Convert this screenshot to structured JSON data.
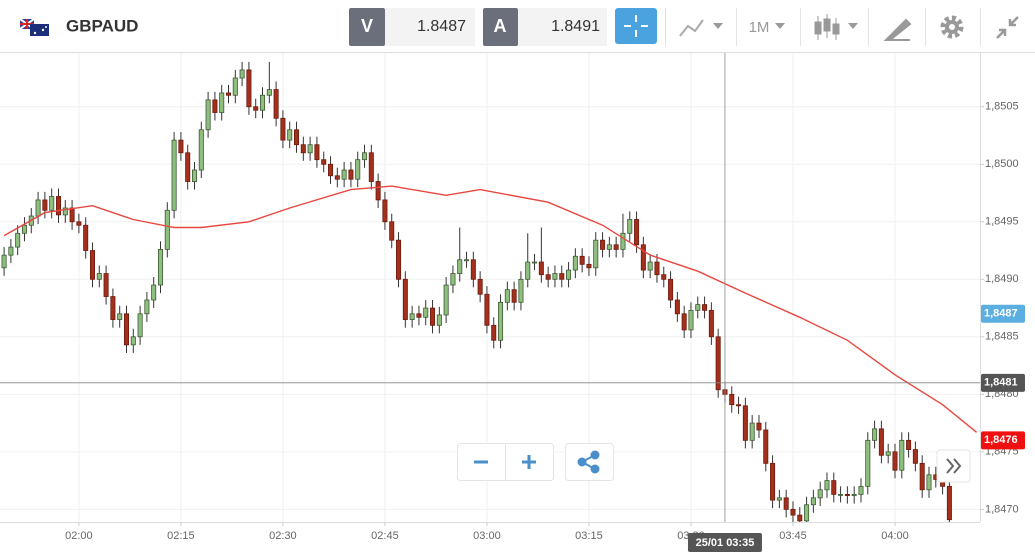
{
  "toolbar": {
    "symbol": "GBPAUD",
    "bid_label": "V",
    "bid": 1.8487,
    "ask_label": "A",
    "ask": 1.8491,
    "timeframe": "1M"
  },
  "chart_data": {
    "type": "candlestick",
    "up_color": "#8fbf7f",
    "down_color": "#a3301d",
    "wick_color": "#333333",
    "grid": true,
    "xlim": [
      -0.6,
      143.5
    ],
    "ylim": [
      1.84689,
      1.85095
    ],
    "xticks": [
      {
        "value": 11,
        "label": "02:00"
      },
      {
        "value": 26,
        "label": "02:15"
      },
      {
        "value": 41,
        "label": "02:30"
      },
      {
        "value": 56,
        "label": "02:45"
      },
      {
        "value": 71,
        "label": "03:00"
      },
      {
        "value": 86,
        "label": "03:15"
      },
      {
        "value": 101,
        "label": "03:30"
      },
      {
        "value": 116,
        "label": "03:45"
      },
      {
        "value": 131,
        "label": "04:00"
      }
    ],
    "yticks": [
      {
        "value": 1.847,
        "label": "1,8470"
      },
      {
        "value": 1.8475,
        "label": "1,8475"
      },
      {
        "value": 1.848,
        "label": "1,8480"
      },
      {
        "value": 1.8485,
        "label": "1,8485"
      },
      {
        "value": 1.849,
        "label": "1,8490"
      },
      {
        "value": 1.8495,
        "label": "1,8495"
      },
      {
        "value": 1.85,
        "label": "1,8500"
      },
      {
        "value": 1.8505,
        "label": "1,8505"
      }
    ],
    "ohlc": [
      [
        1.8491,
        1.84928,
        1.84903,
        1.84921
      ],
      [
        1.84921,
        1.84935,
        1.84914,
        1.84928
      ],
      [
        1.84928,
        1.84947,
        1.84921,
        1.8494
      ],
      [
        1.8494,
        1.84954,
        1.84933,
        1.84947
      ],
      [
        1.84947,
        1.84962,
        1.8494,
        1.84955
      ],
      [
        1.84955,
        1.84976,
        1.84948,
        1.84969
      ],
      [
        1.84969,
        1.84976,
        1.84953,
        1.8496
      ],
      [
        1.8496,
        1.84979,
        1.84953,
        1.84972
      ],
      [
        1.84972,
        1.84979,
        1.84949,
        1.84956
      ],
      [
        1.84956,
        1.84969,
        1.84949,
        1.84962
      ],
      [
        1.84962,
        1.84969,
        1.84943,
        1.8495
      ],
      [
        1.8495,
        1.84957,
        1.8494,
        1.84947
      ],
      [
        1.84947,
        1.84954,
        1.84918,
        1.84925
      ],
      [
        1.84925,
        1.84932,
        1.84893,
        1.849
      ],
      [
        1.849,
        1.84912,
        1.84893,
        1.84905
      ],
      [
        1.84905,
        1.84912,
        1.84878,
        1.84885
      ],
      [
        1.84885,
        1.84892,
        1.84858,
        1.84865
      ],
      [
        1.84865,
        1.84877,
        1.84858,
        1.8487
      ],
      [
        1.8487,
        1.84877,
        1.84836,
        1.84843
      ],
      [
        1.84843,
        1.84857,
        1.84836,
        1.8485
      ],
      [
        1.8485,
        1.84877,
        1.84843,
        1.8487
      ],
      [
        1.8487,
        1.84889,
        1.84863,
        1.84882
      ],
      [
        1.84882,
        1.84902,
        1.84875,
        1.84895
      ],
      [
        1.84895,
        1.84933,
        1.84888,
        1.84926
      ],
      [
        1.84926,
        1.84967,
        1.84919,
        1.8496
      ],
      [
        1.8496,
        1.85028,
        1.84953,
        1.85021
      ],
      [
        1.85021,
        1.85028,
        1.85003,
        1.8501
      ],
      [
        1.8501,
        1.85017,
        1.84978,
        1.84985
      ],
      [
        1.84985,
        1.85002,
        1.84978,
        1.84995
      ],
      [
        1.84995,
        1.85037,
        1.84988,
        1.8503
      ],
      [
        1.8503,
        1.85063,
        1.85023,
        1.85056
      ],
      [
        1.85056,
        1.85063,
        1.85038,
        1.85045
      ],
      [
        1.85045,
        1.85069,
        1.85038,
        1.85062
      ],
      [
        1.85062,
        1.85069,
        1.85053,
        1.8506
      ],
      [
        1.8506,
        1.85082,
        1.85053,
        1.85075
      ],
      [
        1.85075,
        1.85089,
        1.85068,
        1.85082
      ],
      [
        1.85082,
        1.85089,
        1.85043,
        1.8505
      ],
      [
        1.8505,
        1.85057,
        1.8504,
        1.85047
      ],
      [
        1.85047,
        1.85067,
        1.8504,
        1.8506
      ],
      [
        1.8506,
        1.85089,
        1.85053,
        1.85065
      ],
      [
        1.85065,
        1.85072,
        1.85033,
        1.8504
      ],
      [
        1.8504,
        1.85047,
        1.85014,
        1.85021
      ],
      [
        1.85021,
        1.85037,
        1.85014,
        1.8503
      ],
      [
        1.8503,
        1.85037,
        1.8501,
        1.85017
      ],
      [
        1.85017,
        1.85024,
        1.85003,
        1.8501
      ],
      [
        1.8501,
        1.85024,
        1.85003,
        1.85017
      ],
      [
        1.85017,
        1.85024,
        1.84997,
        1.85004
      ],
      [
        1.85004,
        1.85011,
        1.84993,
        1.85
      ],
      [
        1.85,
        1.85007,
        1.84983,
        1.8499
      ],
      [
        1.8499,
        1.84997,
        1.8498,
        1.84987
      ],
      [
        1.84987,
        1.85002,
        1.8498,
        1.84995
      ],
      [
        1.84995,
        1.85002,
        1.8498,
        1.84987
      ],
      [
        1.84987,
        1.85011,
        1.8498,
        1.85004
      ],
      [
        1.85004,
        1.85017,
        1.84997,
        1.8501
      ],
      [
        1.8501,
        1.85017,
        1.84978,
        1.84985
      ],
      [
        1.84985,
        1.84992,
        1.84962,
        1.84969
      ],
      [
        1.84969,
        1.84976,
        1.84943,
        1.8495
      ],
      [
        1.8495,
        1.84957,
        1.84927,
        1.84934
      ],
      [
        1.84934,
        1.84941,
        1.84893,
        1.849
      ],
      [
        1.849,
        1.84907,
        1.84858,
        1.84865
      ],
      [
        1.84865,
        1.84877,
        1.84858,
        1.8487
      ],
      [
        1.8487,
        1.84877,
        1.8486,
        1.84867
      ],
      [
        1.84867,
        1.84882,
        1.8486,
        1.84875
      ],
      [
        1.84875,
        1.84882,
        1.84853,
        1.8486
      ],
      [
        1.8486,
        1.84876,
        1.84853,
        1.84869
      ],
      [
        1.84869,
        1.84902,
        1.84862,
        1.84895
      ],
      [
        1.84895,
        1.84912,
        1.84888,
        1.84905
      ],
      [
        1.84905,
        1.84945,
        1.84898,
        1.84917
      ],
      [
        1.84917,
        1.84924,
        1.8491,
        1.84917
      ],
      [
        1.84917,
        1.84924,
        1.84893,
        1.849
      ],
      [
        1.849,
        1.84907,
        1.8488,
        1.84887
      ],
      [
        1.84887,
        1.84894,
        1.84853,
        1.8486
      ],
      [
        1.8486,
        1.84867,
        1.8484,
        1.84847
      ],
      [
        1.84847,
        1.84887,
        1.8484,
        1.8488
      ],
      [
        1.8488,
        1.84898,
        1.84873,
        1.84891
      ],
      [
        1.84891,
        1.84898,
        1.84873,
        1.8488
      ],
      [
        1.8488,
        1.84907,
        1.84873,
        1.849
      ],
      [
        1.849,
        1.8494,
        1.84893,
        1.84915
      ],
      [
        1.84915,
        1.84922,
        1.84908,
        1.84915
      ],
      [
        1.84915,
        1.84945,
        1.84897,
        1.84904
      ],
      [
        1.84904,
        1.84911,
        1.84893,
        1.849
      ],
      [
        1.849,
        1.84912,
        1.84893,
        1.84905
      ],
      [
        1.84905,
        1.84912,
        1.84893,
        1.849
      ],
      [
        1.849,
        1.84915,
        1.84893,
        1.84908
      ],
      [
        1.84908,
        1.84927,
        1.84901,
        1.8492
      ],
      [
        1.8492,
        1.84927,
        1.84906,
        1.84913
      ],
      [
        1.84913,
        1.8492,
        1.84903,
        1.8491
      ],
      [
        1.8491,
        1.84941,
        1.84903,
        1.84934
      ],
      [
        1.84934,
        1.84941,
        1.84919,
        1.84926
      ],
      [
        1.84926,
        1.84937,
        1.84919,
        1.8493
      ],
      [
        1.8493,
        1.84937,
        1.84919,
        1.84926
      ],
      [
        1.84926,
        1.84957,
        1.84919,
        1.8494
      ],
      [
        1.8494,
        1.84959,
        1.84933,
        1.84952
      ],
      [
        1.84952,
        1.84959,
        1.84923,
        1.8493
      ],
      [
        1.8493,
        1.84937,
        1.84901,
        1.84908
      ],
      [
        1.84908,
        1.84922,
        1.84901,
        1.84915
      ],
      [
        1.84915,
        1.84922,
        1.84897,
        1.84904
      ],
      [
        1.84904,
        1.84911,
        1.84893,
        1.849
      ],
      [
        1.849,
        1.84907,
        1.84875,
        1.84882
      ],
      [
        1.84882,
        1.84889,
        1.84863,
        1.8487
      ],
      [
        1.8487,
        1.84877,
        1.84849,
        1.84856
      ],
      [
        1.84856,
        1.8488,
        1.84849,
        1.84873
      ],
      [
        1.84873,
        1.84885,
        1.84866,
        1.84878
      ],
      [
        1.84878,
        1.84885,
        1.84866,
        1.84873
      ],
      [
        1.84873,
        1.8488,
        1.84843,
        1.8485
      ],
      [
        1.8485,
        1.84857,
        1.84797,
        1.84804
      ],
      [
        1.84804,
        1.84811,
        1.84793,
        1.848
      ],
      [
        1.848,
        1.84807,
        1.84784,
        1.84791
      ],
      [
        1.84791,
        1.84798,
        1.84783,
        1.8479
      ],
      [
        1.8479,
        1.84797,
        1.84753,
        1.8476
      ],
      [
        1.8476,
        1.84782,
        1.84753,
        1.84775
      ],
      [
        1.84775,
        1.84782,
        1.84762,
        1.84769
      ],
      [
        1.84769,
        1.84776,
        1.84733,
        1.8474
      ],
      [
        1.8474,
        1.84747,
        1.84701,
        1.84708
      ],
      [
        1.84708,
        1.84717,
        1.84701,
        1.8471
      ],
      [
        1.8471,
        1.84717,
        1.84693,
        1.847
      ],
      [
        1.847,
        1.84707,
        1.84688,
        1.84695
      ],
      [
        1.84695,
        1.84702,
        1.84686,
        1.8469
      ],
      [
        1.8469,
        1.84711,
        1.84686,
        1.84704
      ],
      [
        1.84704,
        1.84717,
        1.84697,
        1.8471
      ],
      [
        1.8471,
        1.84724,
        1.84703,
        1.84717
      ],
      [
        1.84717,
        1.84732,
        1.8471,
        1.84725
      ],
      [
        1.84725,
        1.84732,
        1.84706,
        1.84713
      ],
      [
        1.84713,
        1.8472,
        1.84706,
        1.84713
      ],
      [
        1.84713,
        1.8472,
        1.84705,
        1.84712
      ],
      [
        1.84712,
        1.8472,
        1.84705,
        1.84713
      ],
      [
        1.84713,
        1.84727,
        1.84706,
        1.8472
      ],
      [
        1.8472,
        1.84767,
        1.84713,
        1.8476
      ],
      [
        1.8476,
        1.84777,
        1.84753,
        1.8477
      ],
      [
        1.8477,
        1.84777,
        1.8474,
        1.84747
      ],
      [
        1.84747,
        1.84757,
        1.8474,
        1.8475
      ],
      [
        1.8475,
        1.84757,
        1.84727,
        1.84734
      ],
      [
        1.84734,
        1.84767,
        1.84727,
        1.8476
      ],
      [
        1.8476,
        1.84767,
        1.84745,
        1.84752
      ],
      [
        1.84752,
        1.84759,
        1.84733,
        1.8474
      ],
      [
        1.8474,
        1.84747,
        1.8471,
        1.84717
      ],
      [
        1.84717,
        1.84737,
        1.8471,
        1.8473
      ],
      [
        1.8473,
        1.84737,
        1.84719,
        1.84726
      ],
      [
        1.84726,
        1.84733,
        1.84713,
        1.8472
      ],
      [
        1.8472,
        1.84727,
        1.84684,
        1.84691
      ]
    ],
    "ma": {
      "color": "#e8473f",
      "x": [
        0,
        6,
        13,
        19,
        25,
        29,
        36,
        42,
        51,
        57,
        65,
        70,
        80,
        88,
        95,
        102,
        109,
        117,
        124,
        131,
        138,
        143
      ],
      "values": [
        1.84938,
        1.84958,
        1.84964,
        1.84952,
        1.84945,
        1.84945,
        1.8495,
        1.84962,
        1.84978,
        1.84981,
        1.84973,
        1.84978,
        1.84967,
        1.84947,
        1.84921,
        1.84907,
        1.84888,
        1.84867,
        1.84847,
        1.84817,
        1.84791,
        1.84767
      ]
    },
    "markers": [
      {
        "value": 1.8487,
        "label": "1,8487",
        "color": "#5aaee0"
      },
      {
        "value": 1.8476,
        "label": "1,8476",
        "color": "#f01010"
      }
    ],
    "crosshair": {
      "y": {
        "value": 1.8481,
        "label": "1,8481"
      },
      "x": {
        "value": 106,
        "label": "25/01 03:35"
      }
    }
  }
}
